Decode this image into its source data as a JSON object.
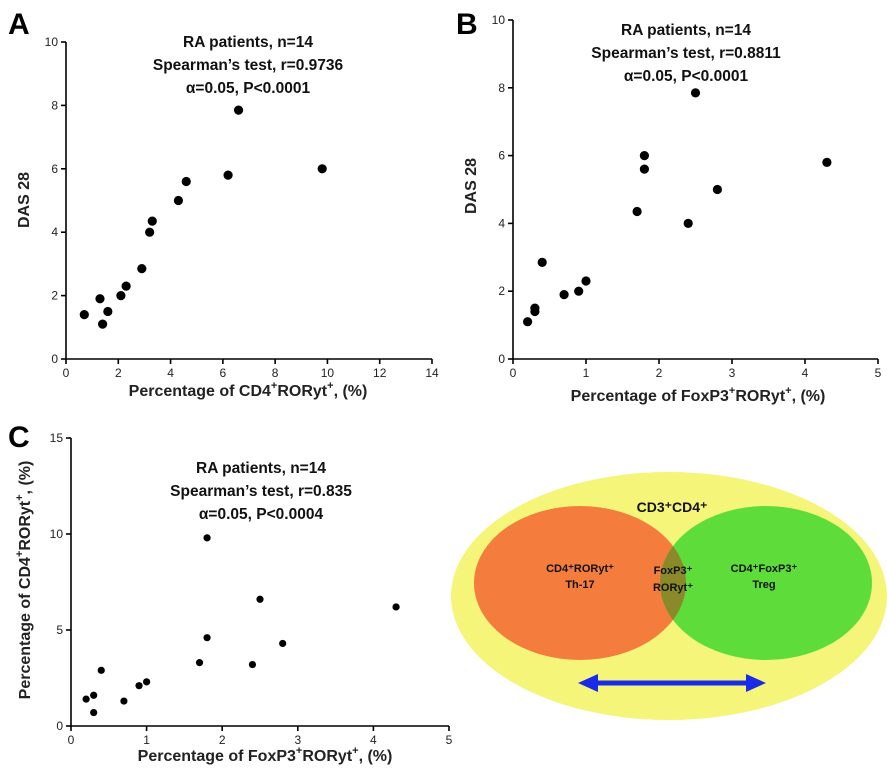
{
  "panels": {
    "a": {
      "letter": "A",
      "stats": [
        "RA patients, n=14",
        "Spearman’s test, r=0.9736",
        "α=0.05, P<0.0001"
      ]
    },
    "b": {
      "letter": "B",
      "stats": [
        "RA patients, n=14",
        "Spearman’s test, r=0.8811",
        "α=0.05, P<0.0001"
      ]
    },
    "c": {
      "letter": "C",
      "stats": [
        "RA patients, n=14",
        "Spearman’s test, r=0.835",
        "α=0.05, P<0.0004"
      ]
    }
  },
  "venn": {
    "outer_label": "CD3⁺CD4⁺",
    "left_lines": [
      "CD4⁺RORyt⁺",
      "Th-17"
    ],
    "center_lines": [
      "FoxP3⁺",
      "RORyt⁺"
    ],
    "right_lines": [
      "CD4⁺FoxP3⁺",
      "Treg"
    ],
    "colors": {
      "outer": "#f5f57a",
      "left": "#f47c3c",
      "right": "#5ddc3a",
      "overlap": "#8a8a2a",
      "arrow": "#1a2be8"
    }
  },
  "chart_data": [
    {
      "type": "scatter",
      "title": "",
      "xlabel": "Percentage of CD4+RORyt+, (%)",
      "ylabel": "DAS 28",
      "xlim": [
        0,
        14
      ],
      "ylim": [
        0,
        10
      ],
      "xticks": [
        0,
        2,
        4,
        6,
        8,
        10,
        12,
        14
      ],
      "yticks": [
        0,
        2,
        4,
        6,
        8,
        10
      ],
      "points": [
        [
          0.7,
          1.4
        ],
        [
          1.3,
          1.9
        ],
        [
          1.4,
          1.1
        ],
        [
          1.6,
          1.5
        ],
        [
          2.1,
          2.0
        ],
        [
          2.3,
          2.3
        ],
        [
          2.9,
          2.85
        ],
        [
          3.2,
          4.0
        ],
        [
          3.3,
          4.35
        ],
        [
          4.3,
          5.0
        ],
        [
          4.6,
          5.6
        ],
        [
          6.2,
          5.8
        ],
        [
          6.6,
          7.85
        ],
        [
          9.8,
          6.0
        ]
      ]
    },
    {
      "type": "scatter",
      "title": "",
      "xlabel": "Percentage of FoxP3+RORyt+, (%)",
      "ylabel": "DAS 28",
      "xlim": [
        0,
        5
      ],
      "ylim": [
        0,
        10
      ],
      "xticks": [
        0,
        1,
        2,
        3,
        4,
        5
      ],
      "yticks": [
        0,
        2,
        4,
        6,
        8,
        10
      ],
      "points": [
        [
          0.2,
          1.1
        ],
        [
          0.3,
          1.4
        ],
        [
          0.3,
          1.5
        ],
        [
          0.4,
          2.85
        ],
        [
          0.7,
          1.9
        ],
        [
          0.9,
          2.0
        ],
        [
          1.0,
          2.3
        ],
        [
          1.7,
          4.35
        ],
        [
          1.8,
          5.6
        ],
        [
          1.8,
          6.0
        ],
        [
          2.4,
          4.0
        ],
        [
          2.5,
          7.85
        ],
        [
          2.8,
          5.0
        ],
        [
          4.3,
          5.8
        ]
      ]
    },
    {
      "type": "scatter",
      "title": "",
      "xlabel": "Percentage of FoxP3+RORyt+, (%)",
      "ylabel": "Percentage of CD4+RORyt+, (%)",
      "xlim": [
        0,
        5
      ],
      "ylim": [
        0,
        15
      ],
      "xticks": [
        0,
        1,
        2,
        3,
        4,
        5
      ],
      "yticks": [
        0,
        5,
        10,
        15
      ],
      "points": [
        [
          0.2,
          1.4
        ],
        [
          0.3,
          1.6
        ],
        [
          0.3,
          0.7
        ],
        [
          0.4,
          2.9
        ],
        [
          0.7,
          1.3
        ],
        [
          0.9,
          2.1
        ],
        [
          1.0,
          2.3
        ],
        [
          1.7,
          3.3
        ],
        [
          1.8,
          4.6
        ],
        [
          1.8,
          9.8
        ],
        [
          2.4,
          3.2
        ],
        [
          2.5,
          6.6
        ],
        [
          2.8,
          4.3
        ],
        [
          4.3,
          6.2
        ]
      ]
    }
  ]
}
